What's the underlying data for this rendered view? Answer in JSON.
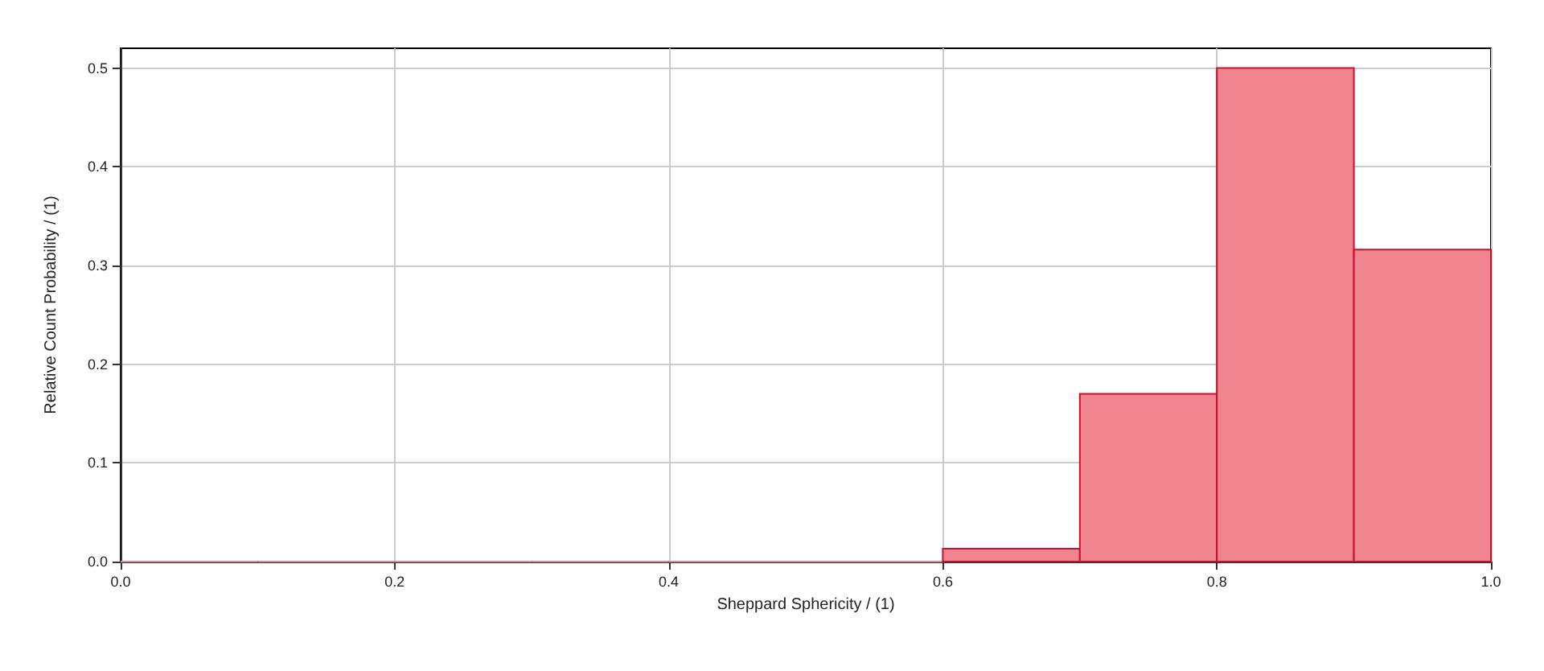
{
  "chart_data": {
    "type": "histogram",
    "xlabel": "Sheppard Sphericity / (1)",
    "ylabel": "Relative Count Probability / (1)",
    "bins": [
      0.0,
      0.1,
      0.2,
      0.3,
      0.4,
      0.5,
      0.6,
      0.7,
      0.8,
      0.9,
      1.0
    ],
    "values": [
      0,
      0,
      0,
      0,
      0,
      0,
      0.013,
      0.17,
      0.5,
      0.316
    ],
    "color": "#f08590",
    "xlim": [
      0,
      1
    ],
    "xticks": [
      {
        "value": 0,
        "label": "0.0"
      },
      {
        "value": 0.2,
        "label": "0.2"
      },
      {
        "value": 0.4,
        "label": "0.4"
      },
      {
        "value": 0.6,
        "label": "0.6"
      },
      {
        "value": 0.8,
        "label": "0.8"
      },
      {
        "value": 1,
        "label": "1.0"
      }
    ],
    "ylim": [
      0,
      0.52
    ],
    "yticks": [
      {
        "value": 0,
        "label": "0.0"
      },
      {
        "value": 0.1,
        "label": "0.1"
      },
      {
        "value": 0.2,
        "label": "0.2"
      },
      {
        "value": 0.3,
        "label": "0.3"
      },
      {
        "value": 0.4,
        "label": "0.4"
      },
      {
        "value": 0.5,
        "label": "0.5"
      }
    ],
    "grid": true
  }
}
